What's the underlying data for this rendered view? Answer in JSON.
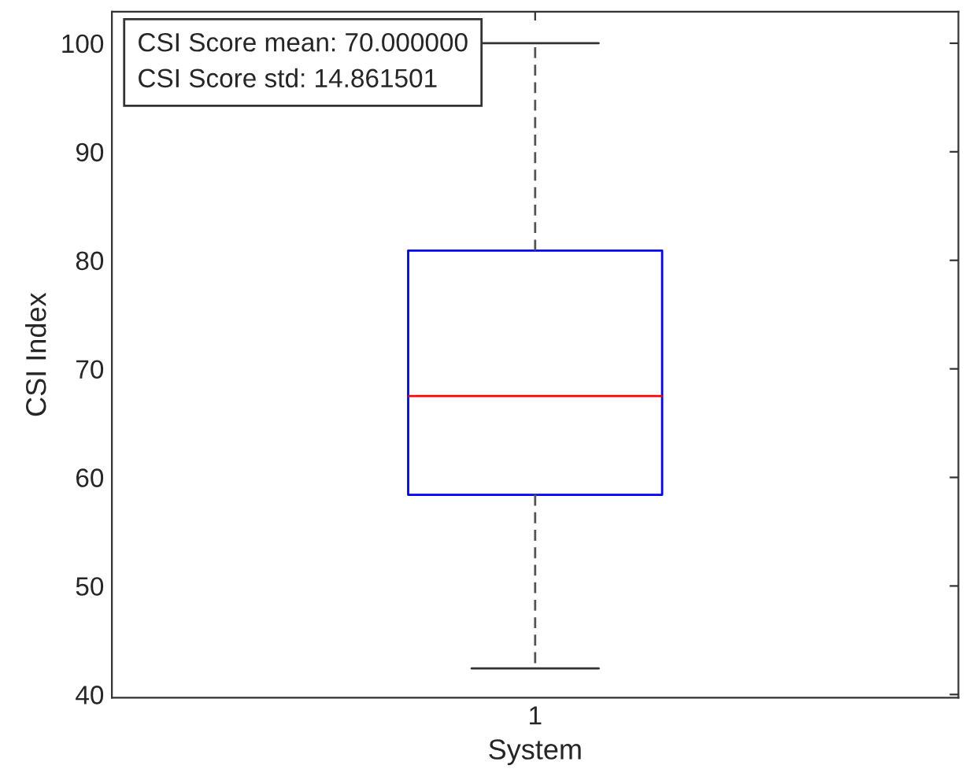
{
  "chart_data": {
    "type": "box",
    "xlabel": "System",
    "ylabel": "CSI Index",
    "categories": [
      "1"
    ],
    "series": [
      {
        "color": "#0000ff",
        "boxes": [
          {
            "low": 42.4,
            "q1": 58.4,
            "median": 67.5,
            "q3": 80.9,
            "high": 100
          }
        ]
      }
    ],
    "ylim": [
      39.7,
      102.9
    ],
    "yticks": [
      40,
      50,
      60,
      70,
      80,
      90,
      100
    ],
    "annotations": [
      "CSI Score mean: 70.000000\nCSI Score std: 14.861501"
    ]
  }
}
